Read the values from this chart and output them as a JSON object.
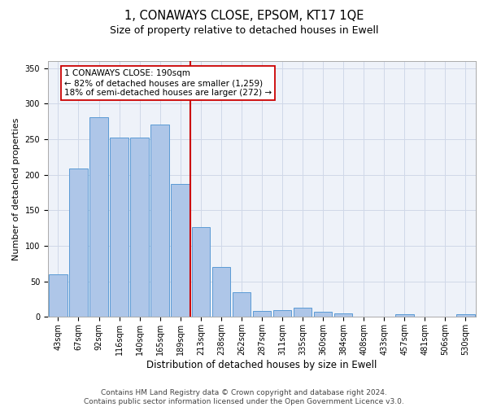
{
  "title": "1, CONAWAYS CLOSE, EPSOM, KT17 1QE",
  "subtitle": "Size of property relative to detached houses in Ewell",
  "xlabel": "Distribution of detached houses by size in Ewell",
  "ylabel": "Number of detached properties",
  "categories": [
    "43sqm",
    "67sqm",
    "92sqm",
    "116sqm",
    "140sqm",
    "165sqm",
    "189sqm",
    "213sqm",
    "238sqm",
    "262sqm",
    "287sqm",
    "311sqm",
    "335sqm",
    "360sqm",
    "384sqm",
    "408sqm",
    "433sqm",
    "457sqm",
    "481sqm",
    "506sqm",
    "530sqm"
  ],
  "values": [
    60,
    209,
    281,
    252,
    252,
    271,
    187,
    127,
    70,
    35,
    9,
    10,
    13,
    7,
    5,
    1,
    1,
    4,
    1,
    0,
    4
  ],
  "bar_color": "#aec6e8",
  "bar_edge_color": "#5b9bd5",
  "vline_index": 6,
  "annotation_line1": "1 CONAWAYS CLOSE: 190sqm",
  "annotation_line2": "← 82% of detached houses are smaller (1,259)",
  "annotation_line3": "18% of semi-detached houses are larger (272) →",
  "vline_color": "#cc0000",
  "annotation_box_edge_color": "#cc0000",
  "annotation_box_face_color": "#ffffff",
  "ylim": [
    0,
    360
  ],
  "yticks": [
    0,
    50,
    100,
    150,
    200,
    250,
    300,
    350
  ],
  "footer_line1": "Contains HM Land Registry data © Crown copyright and database right 2024.",
  "footer_line2": "Contains public sector information licensed under the Open Government Licence v3.0.",
  "title_fontsize": 10.5,
  "subtitle_fontsize": 9,
  "xlabel_fontsize": 8.5,
  "ylabel_fontsize": 8,
  "tick_fontsize": 7,
  "footer_fontsize": 6.5,
  "annotation_fontsize": 7.5,
  "grid_color": "#d0d8e8",
  "background_color": "#eef2f9"
}
